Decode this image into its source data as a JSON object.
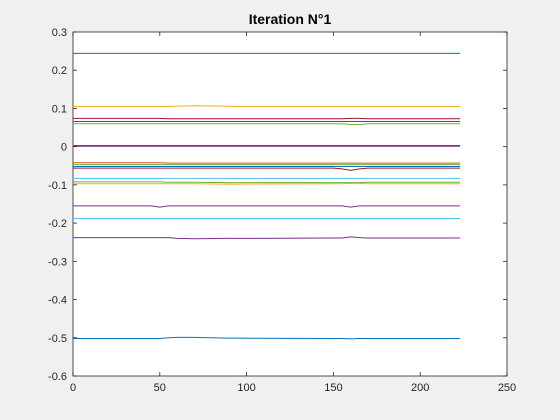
{
  "chart_data": {
    "type": "line",
    "title": "Iteration N°1",
    "xlabel": "",
    "ylabel": "",
    "xlim": [
      0,
      250
    ],
    "ylim": [
      -0.6,
      0.3
    ],
    "xticks": [
      0,
      50,
      100,
      150,
      200,
      250
    ],
    "yticks": [
      0.3,
      0.2,
      0.1,
      0,
      -0.1,
      -0.2,
      -0.3,
      -0.4,
      -0.5,
      -0.6
    ],
    "xtick_labels": [
      "0",
      "50",
      "100",
      "150",
      "200",
      "250"
    ],
    "ytick_labels": [
      "0.3",
      "0.2",
      "0.1",
      "0",
      "-0.1",
      "-0.2",
      "-0.3",
      "-0.4",
      "-0.5",
      "-0.6"
    ],
    "grid": false,
    "legend": "none",
    "x": [
      0,
      45,
      50,
      55,
      60,
      70,
      88,
      95,
      150,
      155,
      160,
      165,
      170,
      200,
      223
    ],
    "series": [
      {
        "color": "#0072BD",
        "values": [
          0.244,
          0.244,
          0.244,
          0.244,
          0.244,
          0.244,
          0.244,
          0.244,
          0.244,
          0.244,
          0.244,
          0.244,
          0.244,
          0.244,
          0.244
        ]
      },
      {
        "color": "#EDB120",
        "values": [
          0.105,
          0.105,
          0.105,
          0.105,
          0.106,
          0.107,
          0.106,
          0.105,
          0.105,
          0.105,
          0.105,
          0.105,
          0.105,
          0.105,
          0.105
        ]
      },
      {
        "color": "#A2142F",
        "values": [
          0.074,
          0.074,
          0.074,
          0.073,
          0.073,
          0.073,
          0.073,
          0.073,
          0.073,
          0.073,
          0.074,
          0.074,
          0.073,
          0.073,
          0.073
        ]
      },
      {
        "color": "#7E2F8E",
        "values": [
          0.066,
          0.066,
          0.066,
          0.066,
          0.066,
          0.066,
          0.066,
          0.066,
          0.066,
          0.066,
          0.066,
          0.066,
          0.066,
          0.066,
          0.066
        ]
      },
      {
        "color": "#77AC30",
        "values": [
          0.06,
          0.06,
          0.06,
          0.06,
          0.06,
          0.06,
          0.06,
          0.06,
          0.06,
          0.06,
          0.058,
          0.058,
          0.06,
          0.06,
          0.06
        ]
      },
      {
        "color": "#0072BD",
        "values": [
          0.003,
          0.003,
          0.003,
          0.003,
          0.003,
          0.003,
          0.003,
          0.003,
          0.003,
          0.003,
          0.003,
          0.003,
          0.003,
          0.003,
          0.003
        ]
      },
      {
        "color": "#7E2F8E",
        "values": [
          0.001,
          0.001,
          0.001,
          0.001,
          0.001,
          0.001,
          0.001,
          0.001,
          0.001,
          0.001,
          0.001,
          0.001,
          0.001,
          0.001,
          0.001
        ]
      },
      {
        "color": "#D95319",
        "values": [
          -0.042,
          -0.042,
          -0.042,
          -0.043,
          -0.043,
          -0.043,
          -0.043,
          -0.043,
          -0.043,
          -0.043,
          -0.043,
          -0.043,
          -0.043,
          -0.043,
          -0.043
        ]
      },
      {
        "color": "#77AC30",
        "values": [
          -0.047,
          -0.047,
          -0.047,
          -0.047,
          -0.047,
          -0.047,
          -0.047,
          -0.047,
          -0.047,
          -0.047,
          -0.047,
          -0.047,
          -0.047,
          -0.047,
          -0.047
        ]
      },
      {
        "color": "#0072BD",
        "values": [
          -0.052,
          -0.052,
          -0.052,
          -0.052,
          -0.052,
          -0.052,
          -0.052,
          -0.052,
          -0.052,
          -0.052,
          -0.052,
          -0.052,
          -0.052,
          -0.052,
          -0.052
        ]
      },
      {
        "color": "#A2142F",
        "values": [
          -0.056,
          -0.056,
          -0.056,
          -0.056,
          -0.056,
          -0.056,
          -0.056,
          -0.056,
          -0.056,
          -0.058,
          -0.062,
          -0.058,
          -0.056,
          -0.056,
          -0.056
        ]
      },
      {
        "color": "#4DBEEE",
        "values": [
          -0.083,
          -0.083,
          -0.083,
          -0.083,
          -0.083,
          -0.083,
          -0.083,
          -0.083,
          -0.083,
          -0.083,
          -0.083,
          -0.083,
          -0.083,
          -0.083,
          -0.083
        ]
      },
      {
        "color": "#77AC30",
        "values": [
          -0.092,
          -0.092,
          -0.092,
          -0.093,
          -0.093,
          -0.093,
          -0.094,
          -0.094,
          -0.094,
          -0.094,
          -0.094,
          -0.094,
          -0.093,
          -0.093,
          -0.093
        ]
      },
      {
        "color": "#EDB120",
        "values": [
          -0.097,
          -0.097,
          -0.097,
          -0.097,
          -0.097,
          -0.097,
          -0.098,
          -0.098,
          -0.097,
          -0.097,
          -0.096,
          -0.096,
          -0.097,
          -0.097,
          -0.097
        ]
      },
      {
        "color": "#7E2F8E",
        "values": [
          -0.155,
          -0.155,
          -0.158,
          -0.155,
          -0.155,
          -0.155,
          -0.155,
          -0.155,
          -0.155,
          -0.155,
          -0.158,
          -0.155,
          -0.155,
          -0.155,
          -0.155
        ]
      },
      {
        "color": "#4DBEEE",
        "values": [
          -0.188,
          -0.188,
          -0.188,
          -0.188,
          -0.188,
          -0.188,
          -0.188,
          -0.188,
          -0.188,
          -0.188,
          -0.188,
          -0.188,
          -0.188,
          -0.188,
          -0.188
        ]
      },
      {
        "color": "#7E2F8E",
        "values": [
          -0.238,
          -0.238,
          -0.238,
          -0.238,
          -0.24,
          -0.241,
          -0.24,
          -0.24,
          -0.239,
          -0.239,
          -0.236,
          -0.238,
          -0.239,
          -0.239,
          -0.239
        ]
      },
      {
        "color": "#0072BD",
        "values": [
          -0.502,
          -0.502,
          -0.502,
          -0.5,
          -0.499,
          -0.499,
          -0.501,
          -0.501,
          -0.502,
          -0.502,
          -0.503,
          -0.502,
          -0.502,
          -0.502,
          -0.502
        ]
      }
    ]
  }
}
